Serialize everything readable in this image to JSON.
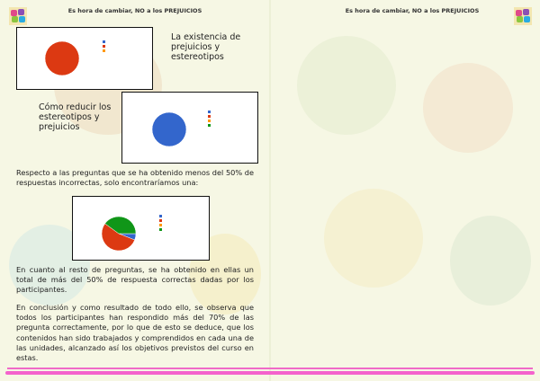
{
  "header": {
    "left": "Es hora de cambiar, NO a los PREJUICIOS",
    "right": "Es hora de cambiar, NO a los PREJUICIOS"
  },
  "section1": {
    "title": "La existencia de prejuicios y estereotipos"
  },
  "section2": {
    "title": "Cómo reducir los estereotipos y prejuicios"
  },
  "paragraphs": [
    "Respecto a las preguntas que se ha obtenido menos del 50% de respuestas incorrectas, solo encontraríamos una:",
    "En cuanto al resto de preguntas, se ha obtenido en ellas un total de más del 50% de respuesta correctas dadas por los participantes.",
    "En conclusión y como resultado de todo ello, se observa que todos los participantes han respondido más del 70% de las pregunta correctamente, por lo que de esto se deduce, que los contenidos han sido trabajados y comprendidos en cada una de las unidades, alcanzado así los objetivos previstos del curso en estas."
  ],
  "colors": {
    "blue": "#3366cc",
    "red": "#dc3912",
    "orange": "#ff9900",
    "green": "#109618",
    "accent": "#f462cc"
  },
  "chart_data": [
    {
      "type": "pie",
      "values": [
        0,
        100,
        0
      ],
      "colors": [
        "#3366cc",
        "#dc3912",
        "#ff9900"
      ]
    },
    {
      "type": "pie",
      "values": [
        100,
        0,
        0,
        0
      ],
      "colors": [
        "#3366cc",
        "#dc3912",
        "#ff9900",
        "#109618"
      ]
    },
    {
      "type": "pie",
      "values": [
        6,
        54,
        0,
        40
      ],
      "colors": [
        "#3366cc",
        "#dc3912",
        "#ff9900",
        "#109618"
      ]
    }
  ]
}
